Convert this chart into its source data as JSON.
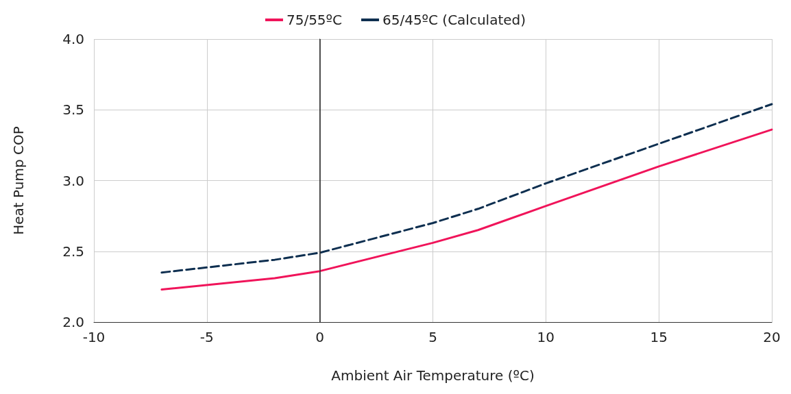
{
  "chart_data": {
    "type": "line",
    "xlabel": "Ambient Air Temperature (ºC)",
    "ylabel": "Heat Pump COP",
    "x": [
      -7,
      -2,
      0,
      5,
      7,
      10,
      15,
      20
    ],
    "series": [
      {
        "name": "75/55ºC",
        "color": "#f0145a",
        "line_style": "solid",
        "values": [
          2.23,
          2.31,
          2.36,
          2.56,
          2.65,
          2.82,
          3.1,
          3.36
        ]
      },
      {
        "name": "65/45ºC (Calculated)",
        "color": "#0e2f50",
        "line_style": "dashed",
        "values": [
          2.35,
          2.44,
          2.49,
          2.7,
          2.8,
          2.98,
          3.26,
          3.54
        ]
      }
    ],
    "xlim": [
      -10,
      20
    ],
    "xticks": [
      -10,
      -5,
      0,
      5,
      10,
      15,
      20
    ],
    "ylim": [
      2,
      4
    ],
    "yticks": [
      {
        "value": 2,
        "label": "2.0"
      },
      2.5,
      {
        "value": 3,
        "label": "3.0"
      },
      3.5,
      {
        "value": 4,
        "label": "4.0"
      }
    ],
    "ref_lines": [
      {
        "axis": "x",
        "value": 0,
        "color": "#333333"
      }
    ],
    "grid": true,
    "legend": "top",
    "marker": "none"
  }
}
